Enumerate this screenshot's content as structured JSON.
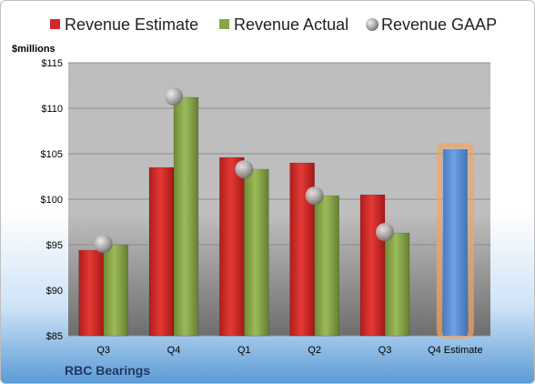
{
  "chart_data": {
    "type": "bar",
    "categories": [
      "Q3",
      "Q4",
      "Q1",
      "Q2",
      "Q3",
      "Q4 Estimate"
    ],
    "series": [
      {
        "name": "Revenue Estimate",
        "values": [
          94.4,
          103.5,
          104.6,
          104.0,
          100.5,
          null
        ],
        "color": "#d62728"
      },
      {
        "name": "Revenue Actual",
        "values": [
          95.0,
          111.2,
          103.3,
          100.4,
          96.3,
          null
        ],
        "color": "#8aa64a"
      },
      {
        "name": "Revenue GAAP",
        "values": [
          95.1,
          111.3,
          103.3,
          100.4,
          96.4,
          null
        ],
        "color": "#b0b0b0",
        "marker": "circle"
      }
    ],
    "forecast": {
      "category_index": 5,
      "value": 105.5,
      "color": "#5b8ed6",
      "glow": "#f4a460"
    },
    "ylabel": "$millions",
    "ylim": [
      85,
      115
    ],
    "yticks": [
      85,
      90,
      95,
      100,
      105,
      110,
      115
    ],
    "ytick_labels": [
      "$85",
      "$90",
      "$95",
      "$100",
      "$105",
      "$110",
      "$115"
    ],
    "grid": true,
    "legend": "top"
  },
  "company_name": "RBC Bearings"
}
